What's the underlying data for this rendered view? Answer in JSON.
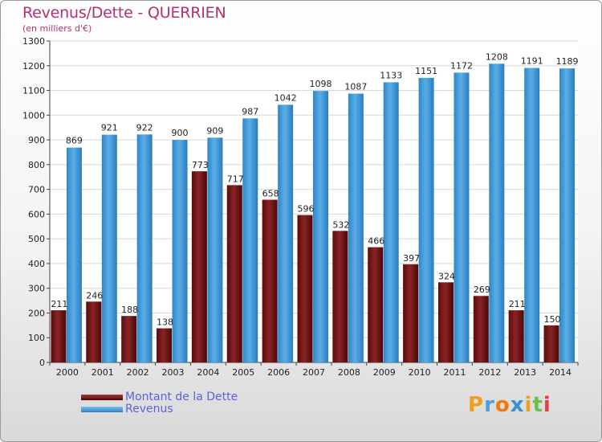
{
  "title": "Revenus/Dette - QUERRIEN",
  "subtitle": "(en milliers d'€)",
  "logo": {
    "letters": [
      "P",
      "r",
      "o",
      "x",
      "i",
      "t",
      "i"
    ]
  },
  "colors": {
    "dette": "#7a1717",
    "revenus": "#3d97da",
    "axis_text": "#222222",
    "grid": "#d8d8d8",
    "title": "#b5306f",
    "legend_text": "#5b63d6"
  },
  "legend": [
    {
      "label": "Montant de la Dette",
      "color": "#7a1717"
    },
    {
      "label": "Revenus",
      "color": "#3d97da"
    }
  ],
  "chart_data": {
    "type": "bar",
    "title": "Revenus/Dette - QUERRIEN",
    "subtitle": "(en milliers d'€)",
    "categories": [
      "2000",
      "2001",
      "2002",
      "2003",
      "2004",
      "2005",
      "2006",
      "2007",
      "2008",
      "2009",
      "2010",
      "2011",
      "2012",
      "2013",
      "2014"
    ],
    "series": [
      {
        "name": "Montant de la Dette",
        "values": [
          211,
          246,
          188,
          138,
          773,
          717,
          658,
          596,
          532,
          466,
          397,
          324,
          269,
          211,
          150
        ]
      },
      {
        "name": "Revenus",
        "values": [
          869,
          921,
          922,
          900,
          909,
          987,
          1042,
          1098,
          1087,
          1133,
          1151,
          1172,
          1208,
          1191,
          1189
        ]
      }
    ],
    "ylim": [
      0,
      1300
    ],
    "yticks": [
      0,
      100,
      200,
      300,
      400,
      500,
      600,
      700,
      800,
      900,
      1000,
      1100,
      1200,
      1300
    ],
    "grid": true,
    "legend_position": "bottom-left"
  }
}
